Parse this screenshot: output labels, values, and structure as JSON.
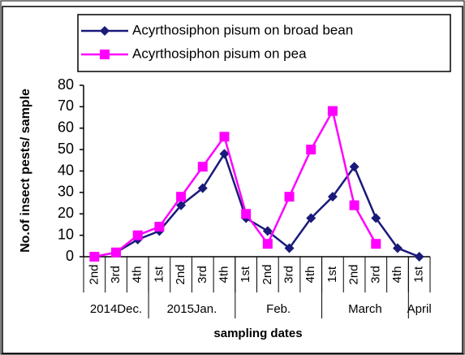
{
  "chart_data": {
    "type": "line",
    "categories": [
      "2nd",
      "3rd",
      "4th",
      "1st",
      "2nd",
      "3rd",
      "4th",
      "1st",
      "2nd",
      "3rd",
      "4th",
      "1st",
      "2nd",
      "3rd",
      "4th",
      "1st"
    ],
    "category_groups": [
      "2014Dec.",
      "2015Jan.",
      "Feb.",
      "March",
      "April"
    ],
    "series": [
      {
        "name": "Acyrthosiphon pisum on broad bean",
        "color": "#1a1a7a",
        "marker": "diamond",
        "values": [
          0,
          2,
          8,
          12,
          24,
          32,
          48,
          18,
          12,
          4,
          18,
          28,
          42,
          18,
          4,
          0
        ]
      },
      {
        "name": "Acyrthosiphon pisum on pea",
        "color": "#ff00ff",
        "marker": "square",
        "values": [
          0,
          2,
          10,
          14,
          28,
          42,
          56,
          20,
          6,
          28,
          50,
          68,
          24,
          6,
          null,
          null
        ]
      }
    ],
    "ylim": [
      0,
      80
    ],
    "yticks": [
      0,
      10,
      20,
      30,
      40,
      50,
      60,
      70,
      80
    ],
    "y_label": "No.of insect pests/ sample",
    "x_label": "sampling dates",
    "grid": false
  }
}
